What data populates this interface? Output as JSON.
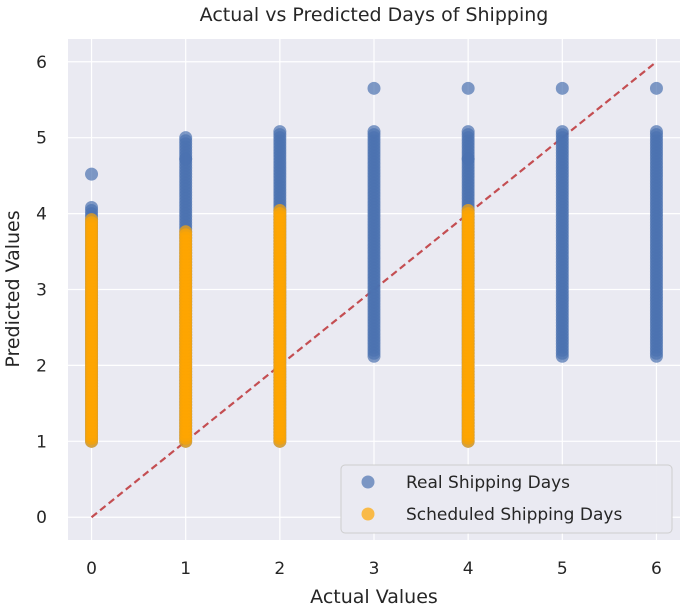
{
  "chart_data": {
    "type": "scatter",
    "title": "Actual vs Predicted Days of Shipping",
    "xlabel": "Actual Values",
    "ylabel": "Predicted Values",
    "xlim": [
      -0.25,
      6.25
    ],
    "ylim": [
      -0.3,
      6.3
    ],
    "xticks": [
      "0",
      "1",
      "2",
      "3",
      "4",
      "5",
      "6"
    ],
    "yticks": [
      "0",
      "1",
      "2",
      "3",
      "4",
      "5",
      "6"
    ],
    "grid": true,
    "background": "#eaeaf2",
    "legend_position": "bottom-right",
    "reference_line": {
      "from": [
        0,
        0
      ],
      "to": [
        6,
        6
      ],
      "color": "#c44e52",
      "style": "dashed"
    },
    "series": [
      {
        "name": "Real Shipping Days",
        "color": "#4c72b0",
        "columns": [
          {
            "x": 0,
            "min": 1.0,
            "max": 4.1,
            "outliers": [
              4.52
            ]
          },
          {
            "x": 1,
            "min": 1.0,
            "max": 5.0,
            "outliers": [
              4.72
            ]
          },
          {
            "x": 2,
            "min": 1.0,
            "max": 5.1,
            "outliers": []
          },
          {
            "x": 3,
            "min": 2.12,
            "max": 5.1,
            "outliers": [
              5.65
            ]
          },
          {
            "x": 4,
            "min": 1.0,
            "max": 5.1,
            "outliers": [
              5.65,
              4.72
            ]
          },
          {
            "x": 5,
            "min": 2.12,
            "max": 5.1,
            "outliers": [
              5.65
            ]
          },
          {
            "x": 6,
            "min": 2.12,
            "max": 5.1,
            "outliers": [
              5.65
            ]
          }
        ]
      },
      {
        "name": "Scheduled Shipping Days",
        "color": "#ffa500",
        "columns": [
          {
            "x": 0,
            "min": 1.0,
            "max": 3.92,
            "outliers": []
          },
          {
            "x": 1,
            "min": 1.0,
            "max": 3.78,
            "outliers": []
          },
          {
            "x": 2,
            "min": 1.0,
            "max": 4.07,
            "outliers": []
          },
          {
            "x": 4,
            "min": 1.0,
            "max": 4.07,
            "outliers": [
              1.6
            ]
          }
        ]
      }
    ]
  }
}
